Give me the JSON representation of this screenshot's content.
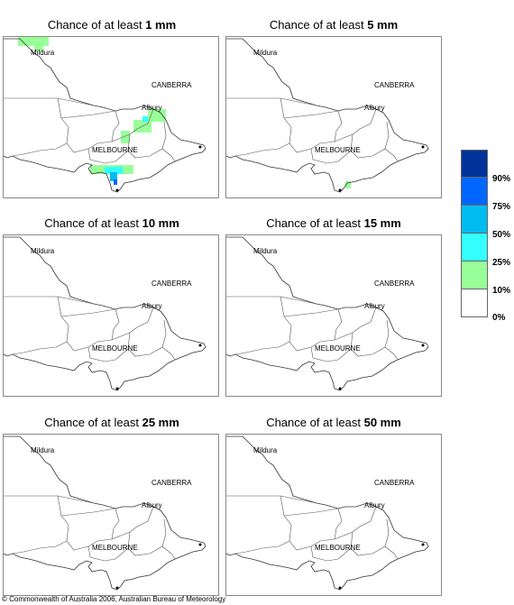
{
  "panels": [
    {
      "prefix": "Chance of at least ",
      "amount": "1 mm"
    },
    {
      "prefix": "Chance of at least ",
      "amount": "5 mm"
    },
    {
      "prefix": "Chance of at least ",
      "amount": "10 mm"
    },
    {
      "prefix": "Chance of at least ",
      "amount": "15 mm"
    },
    {
      "prefix": "Chance of at least ",
      "amount": "25 mm"
    },
    {
      "prefix": "Chance of at least ",
      "amount": "50 mm"
    }
  ],
  "places": {
    "mildura": "Mildura",
    "canberra": "CANBERRA",
    "albury": "Albury",
    "melbourne": "MELBOURNE"
  },
  "legend": {
    "labels": [
      "90%",
      "75%",
      "50%",
      "25%",
      "10%",
      "0%"
    ],
    "colors": [
      "#003399",
      "#0066ff",
      "#00bbee",
      "#33ffff",
      "#99ff99",
      "#ffffff"
    ]
  },
  "copyright": "© Commonwealth of Australia 2006, Australian Bureau of Meteorology"
}
